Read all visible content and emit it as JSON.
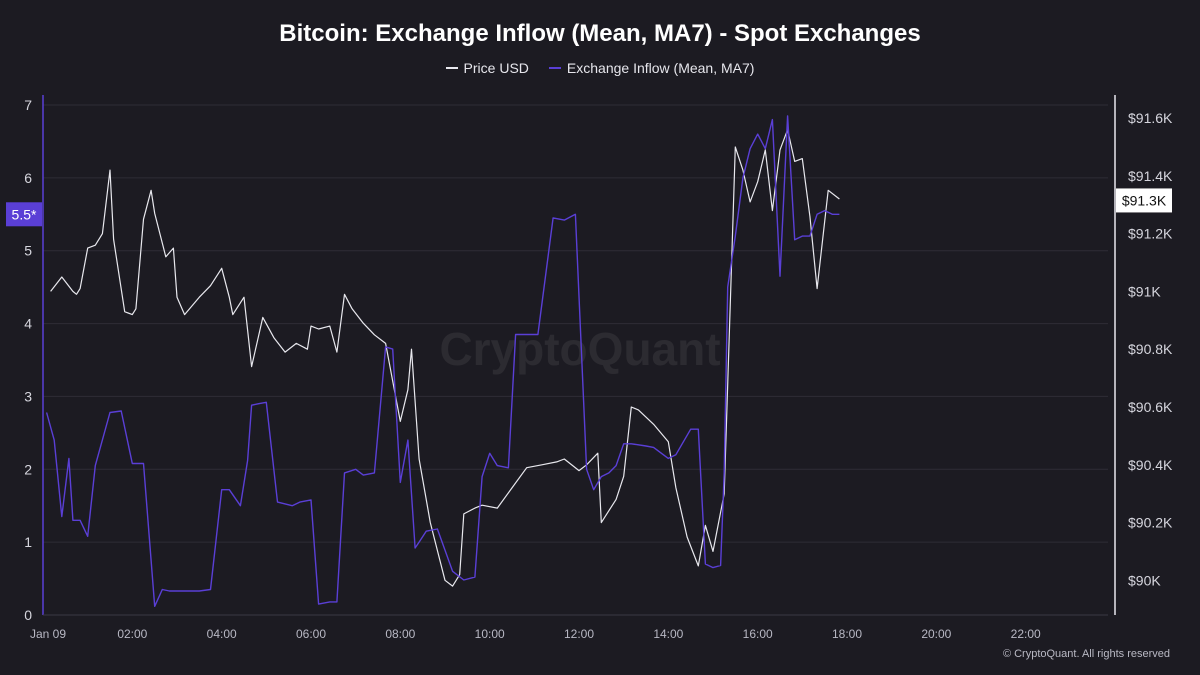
{
  "title": "Bitcoin: Exchange Inflow (Mean, MA7) - Spot Exchanges",
  "legend": [
    {
      "label": "Price USD",
      "color": "#e8e8ee"
    },
    {
      "label": "Exchange Inflow (Mean, MA7)",
      "color": "#5a3fd6"
    }
  ],
  "watermark": "CryptoQuant",
  "footer": "© CryptoQuant. All rights reserved",
  "left_marker": "5.5*",
  "right_marker": "$91.3K",
  "colors": {
    "background": "#1c1b22",
    "grid": "#2e2d36",
    "inflow": "#5a3fd6",
    "price": "#e8e8ee",
    "marker_bg": "#5a3fd6"
  },
  "chart_data": {
    "type": "line",
    "title": "Bitcoin: Exchange Inflow (Mean, MA7) - Spot Exchanges",
    "x_unit": "hours since 00:00 Jan 09",
    "x_ticks": [
      "Jan 09",
      "02:00",
      "04:00",
      "06:00",
      "08:00",
      "10:00",
      "12:00",
      "14:00",
      "16:00",
      "18:00",
      "20:00",
      "22:00"
    ],
    "xlim": [
      0,
      24
    ],
    "left_axis": {
      "ylim": [
        0,
        7
      ],
      "ticks": [
        "0",
        "1",
        "2",
        "3",
        "4",
        "5",
        "6",
        "7"
      ]
    },
    "right_axis": {
      "ylim": [
        89880,
        91680
      ],
      "ticks": [
        "$90K",
        "$90.2K",
        "$90.4K",
        "$90.6K",
        "$90.8K",
        "$91K",
        "$91.2K",
        "$91.4K",
        "$91.6K"
      ],
      "tick_values": [
        90000,
        90200,
        90400,
        90600,
        90800,
        91000,
        91200,
        91400,
        91600
      ]
    },
    "grid": true,
    "legend_position": "top-center",
    "series": [
      {
        "name": "Price USD",
        "axis": "right",
        "color": "#e8e8ee",
        "x": [
          0.17,
          0.42,
          0.67,
          0.75,
          0.83,
          1.0,
          1.17,
          1.33,
          1.5,
          1.58,
          1.83,
          2.0,
          2.08,
          2.25,
          2.42,
          2.5,
          2.75,
          2.92,
          3.0,
          3.17,
          3.5,
          3.75,
          4.0,
          4.17,
          4.25,
          4.5,
          4.67,
          4.92,
          5.17,
          5.42,
          5.67,
          5.92,
          6.0,
          6.17,
          6.42,
          6.58,
          6.75,
          6.92,
          7.17,
          7.42,
          7.67,
          8.0,
          8.17,
          8.25,
          8.42,
          8.67,
          9.0,
          9.17,
          9.33,
          9.42,
          9.67,
          9.83,
          10.17,
          10.5,
          10.83,
          11.17,
          11.5,
          11.67,
          12.0,
          12.17,
          12.42,
          12.5,
          12.83,
          13.0,
          13.17,
          13.33,
          13.67,
          14.0,
          14.17,
          14.42,
          14.67,
          14.83,
          15.0,
          15.25,
          15.5,
          15.67,
          15.83,
          16.0,
          16.17,
          16.33,
          16.5,
          16.67,
          16.83,
          17.0,
          17.17,
          17.33,
          17.58,
          17.83
        ],
        "y": [
          91000,
          91050,
          91000,
          90990,
          91010,
          91150,
          91160,
          91200,
          91420,
          91180,
          90930,
          90920,
          90940,
          91250,
          91350,
          91270,
          91120,
          91150,
          90980,
          90920,
          90980,
          91020,
          91080,
          90980,
          90920,
          90980,
          90740,
          90910,
          90840,
          90790,
          90820,
          90800,
          90880,
          90870,
          90880,
          90790,
          90990,
          90940,
          90890,
          90850,
          90820,
          90550,
          90660,
          90800,
          90420,
          90200,
          90000,
          89980,
          90020,
          90230,
          90250,
          90260,
          90250,
          90320,
          90390,
          90400,
          90410,
          90420,
          90380,
          90400,
          90440,
          90200,
          90280,
          90360,
          90600,
          90590,
          90540,
          90480,
          90320,
          90150,
          90050,
          90190,
          90100,
          90300,
          91500,
          91420,
          91310,
          91380,
          91490,
          91280,
          91490,
          91560,
          91450,
          91460,
          91260,
          91010,
          91350,
          91320
        ]
      },
      {
        "name": "Exchange Inflow (Mean, MA7)",
        "axis": "left",
        "color": "#5a3fd6",
        "x": [
          0.08,
          0.25,
          0.42,
          0.58,
          0.67,
          0.75,
          0.83,
          1.0,
          1.17,
          1.5,
          1.75,
          2.0,
          2.25,
          2.5,
          2.67,
          2.83,
          3.0,
          3.25,
          3.5,
          3.75,
          4.0,
          4.17,
          4.42,
          4.58,
          4.67,
          4.83,
          5.0,
          5.25,
          5.58,
          5.75,
          6.0,
          6.17,
          6.42,
          6.58,
          6.75,
          7.0,
          7.17,
          7.42,
          7.67,
          7.83,
          8.0,
          8.17,
          8.33,
          8.42,
          8.58,
          8.83,
          9.17,
          9.42,
          9.67,
          9.83,
          10.0,
          10.17,
          10.42,
          10.58,
          10.83,
          11.08,
          11.42,
          11.67,
          11.92,
          12.17,
          12.33,
          12.5,
          12.67,
          12.83,
          13.0,
          13.17,
          13.5,
          13.67,
          14.0,
          14.17,
          14.5,
          14.67,
          14.83,
          15.0,
          15.17,
          15.25,
          15.33,
          15.5,
          15.67,
          15.83,
          16.0,
          16.17,
          16.33,
          16.5,
          16.67,
          16.83,
          17.0,
          17.17,
          17.33,
          17.5,
          17.67,
          17.83
        ],
        "y": [
          2.78,
          2.4,
          1.35,
          2.15,
          1.3,
          1.3,
          1.3,
          1.08,
          2.05,
          2.78,
          2.8,
          2.08,
          2.08,
          0.12,
          0.35,
          0.33,
          0.33,
          0.33,
          0.33,
          0.35,
          1.72,
          1.72,
          1.5,
          2.12,
          2.88,
          2.9,
          2.92,
          1.55,
          1.5,
          1.55,
          1.58,
          0.15,
          0.18,
          0.18,
          1.95,
          2.0,
          1.92,
          1.95,
          3.68,
          3.65,
          1.82,
          2.4,
          0.92,
          1.0,
          1.15,
          1.18,
          0.6,
          0.48,
          0.52,
          1.9,
          2.22,
          2.05,
          2.02,
          3.85,
          3.85,
          3.85,
          5.45,
          5.42,
          5.5,
          2.0,
          1.72,
          1.9,
          1.95,
          2.05,
          2.35,
          2.35,
          2.32,
          2.3,
          2.15,
          2.2,
          2.55,
          2.55,
          0.7,
          0.65,
          0.68,
          1.95,
          4.5,
          5.2,
          6.0,
          6.4,
          6.6,
          6.4,
          6.8,
          4.65,
          6.85,
          5.15,
          5.2,
          5.2,
          5.5,
          5.55,
          5.5,
          5.5
        ]
      }
    ]
  }
}
